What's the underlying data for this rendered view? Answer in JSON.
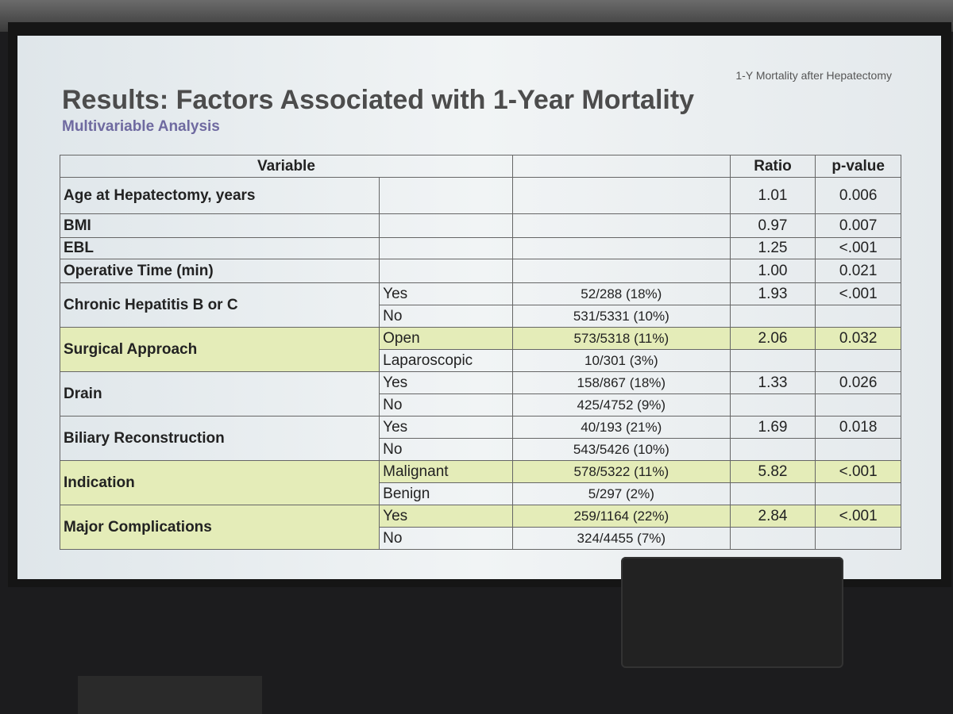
{
  "header": {
    "tag": "1-Y Mortality after Hepatectomy",
    "title": "Results: Factors Associated with 1-Year Mortality",
    "subtitle": "Multivariable Analysis"
  },
  "table": {
    "columns": [
      "Variable",
      "Ratio",
      "p-value"
    ],
    "rows": [
      {
        "variable": "Age at Hepatectomy, years",
        "ratio": "1.01",
        "p": "0.006"
      },
      {
        "variable": "BMI",
        "ratio": "0.97",
        "p": "0.007"
      },
      {
        "variable": "EBL",
        "ratio": "1.25",
        "p": "<.001"
      },
      {
        "variable": "Operative Time (min)",
        "ratio": "1.00",
        "p": "0.021"
      },
      {
        "variable": "Chronic Hepatitis B or C",
        "ratio": "1.93",
        "p": "<.001",
        "levels": [
          {
            "level": "Yes",
            "count": "52/288 (18%)"
          },
          {
            "level": "No",
            "count": "531/5331 (10%)"
          }
        ]
      },
      {
        "variable": "Surgical Approach",
        "ratio": "2.06",
        "p": "0.032",
        "highlight": true,
        "levels": [
          {
            "level": "Open",
            "count": "573/5318 (11%)"
          },
          {
            "level": "Laparoscopic",
            "count": "10/301 (3%)"
          }
        ]
      },
      {
        "variable": "Drain",
        "ratio": "1.33",
        "p": "0.026",
        "levels": [
          {
            "level": "Yes",
            "count": "158/867 (18%)"
          },
          {
            "level": "No",
            "count": "425/4752 (9%)"
          }
        ]
      },
      {
        "variable": "Biliary Reconstruction",
        "ratio": "1.69",
        "p": "0.018",
        "levels": [
          {
            "level": "Yes",
            "count": "40/193 (21%)"
          },
          {
            "level": "No",
            "count": "543/5426 (10%)"
          }
        ]
      },
      {
        "variable": "Indication",
        "ratio": "5.82",
        "p": "<.001",
        "highlight": true,
        "levels": [
          {
            "level": "Malignant",
            "count": "578/5322 (11%)"
          },
          {
            "level": "Benign",
            "count": "5/297 (2%)"
          }
        ]
      },
      {
        "variable": "Major Complications",
        "ratio": "2.84",
        "p": "<.001",
        "highlight": true,
        "levels": [
          {
            "level": "Yes",
            "count": "259/1164 (22%)"
          },
          {
            "level": "No",
            "count": "324/4455 (7%)"
          }
        ]
      }
    ]
  }
}
